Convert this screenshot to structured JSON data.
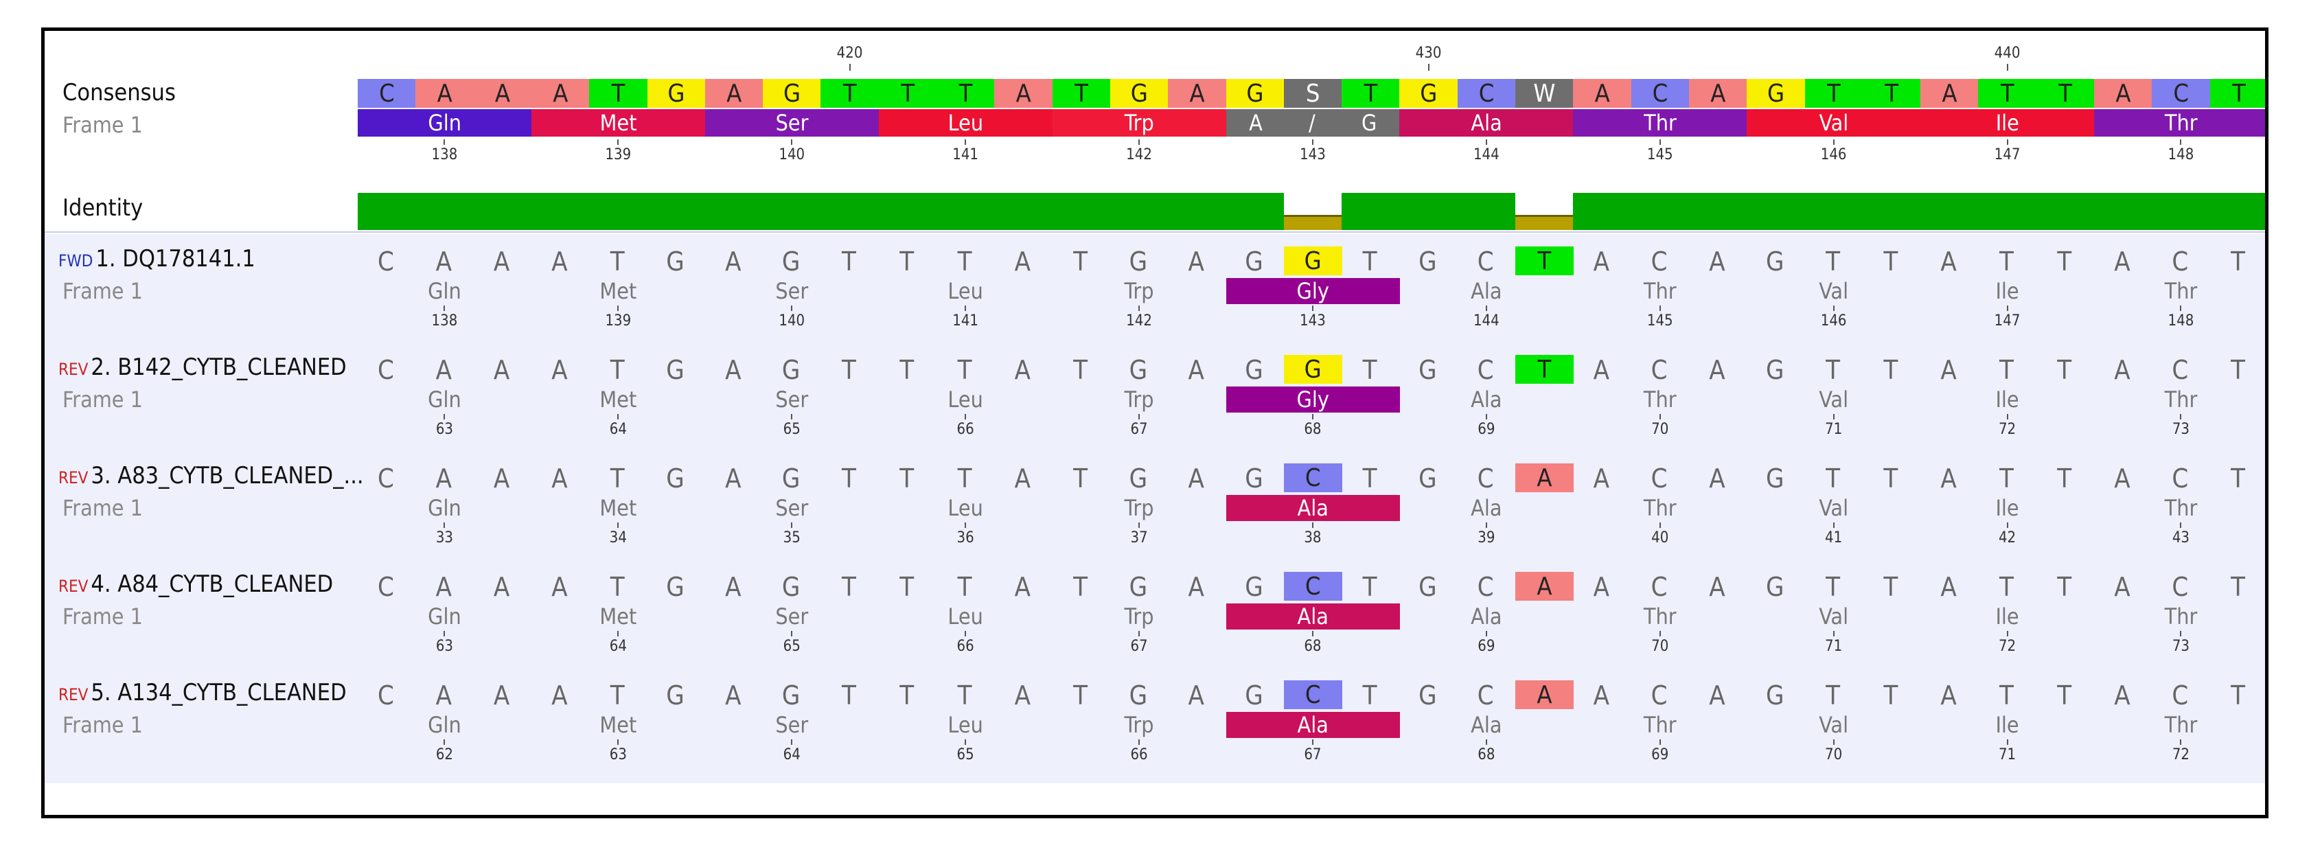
{
  "consensus": {
    "label": "Consensus",
    "frame_label": "Frame 1",
    "ruler": [
      "420",
      "430",
      "440"
    ],
    "bases": [
      "C",
      "A",
      "A",
      "A",
      "T",
      "G",
      "A",
      "G",
      "T",
      "T",
      "T",
      "A",
      "T",
      "G",
      "A",
      "G",
      "S",
      "T",
      "G",
      "C",
      "W",
      "A",
      "C",
      "A",
      "G",
      "T",
      "T",
      "A",
      "T",
      "T",
      "A",
      "C",
      "T"
    ],
    "aminos": [
      {
        "name": "Gln",
        "num": "138"
      },
      {
        "name": "Met",
        "num": "139"
      },
      {
        "name": "Ser",
        "num": "140"
      },
      {
        "name": "Leu",
        "num": "141"
      },
      {
        "name": "Trp",
        "num": "142"
      },
      {
        "name": "A / G",
        "num": "143"
      },
      {
        "name": "Ala",
        "num": "144"
      },
      {
        "name": "Thr",
        "num": "145"
      },
      {
        "name": "Val",
        "num": "146"
      },
      {
        "name": "Ile",
        "num": "147"
      },
      {
        "name": "Thr",
        "num": "148"
      }
    ]
  },
  "identity": {
    "label": "Identity"
  },
  "sequences": [
    {
      "dir": "FWD",
      "name": "1. DQ178141.1",
      "frame_label": "Frame 1",
      "var1": "G",
      "var2": "T",
      "var_aa": "Gly",
      "nums": [
        "138",
        "139",
        "140",
        "141",
        "142",
        "143",
        "144",
        "145",
        "146",
        "147",
        "148"
      ]
    },
    {
      "dir": "REV",
      "name": "2. B142_CYTB_CLEANED",
      "frame_label": "Frame 1",
      "var1": "G",
      "var2": "T",
      "var_aa": "Gly",
      "nums": [
        "63",
        "64",
        "65",
        "66",
        "67",
        "68",
        "69",
        "70",
        "71",
        "72",
        "73"
      ]
    },
    {
      "dir": "REV",
      "name": "3. A83_CYTB_CLEANED_...",
      "frame_label": "Frame 1",
      "var1": "C",
      "var2": "A",
      "var_aa": "Ala",
      "nums": [
        "33",
        "34",
        "35",
        "36",
        "37",
        "38",
        "39",
        "40",
        "41",
        "42",
        "43"
      ]
    },
    {
      "dir": "REV",
      "name": "4. A84_CYTB_CLEANED",
      "frame_label": "Frame 1",
      "var1": "C",
      "var2": "A",
      "var_aa": "Ala",
      "nums": [
        "63",
        "64",
        "65",
        "66",
        "67",
        "68",
        "69",
        "70",
        "71",
        "72",
        "73"
      ]
    },
    {
      "dir": "REV",
      "name": "5. A134_CYTB_CLEANED",
      "frame_label": "Frame 1",
      "var1": "C",
      "var2": "A",
      "var_aa": "Ala",
      "nums": [
        "62",
        "63",
        "64",
        "65",
        "66",
        "67",
        "68",
        "69",
        "70",
        "71",
        "72"
      ]
    }
  ],
  "colors": {
    "A": "#f48080",
    "C": "#7f7fef",
    "G": "#f8f000",
    "T": "#00e800",
    "S": "#6e6e6e",
    "W": "#6e6e6e",
    "aa_Gln": "#5018c8",
    "aa_Met": "#e0104c",
    "aa_Ser": "#8018b0",
    "aa_Leu": "#ee1030",
    "aa_Trp": "#f01a38",
    "aa_AG": "#6e6e6e",
    "aa_Ala": "#c8105c",
    "aa_Thr": "#8018b0",
    "aa_Val": "#ee1030",
    "aa_Ile": "#ee1030",
    "aa_Gly": "#960090",
    "identity_full": "#00a800",
    "identity_partial": "#b8a000"
  }
}
